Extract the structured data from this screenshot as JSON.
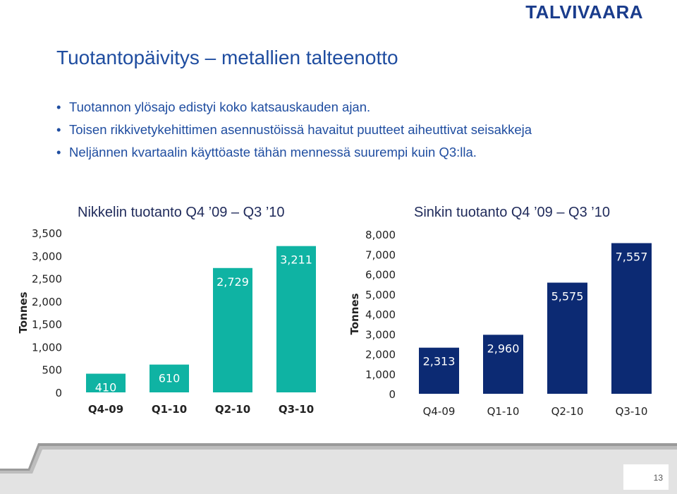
{
  "header": {
    "logo_text": "TALVIVAARA"
  },
  "slide": {
    "title": "Tuotantopäivitys – metallien talteenotto",
    "bullets": [
      "Tuotannon ylösajo edistyi koko katsauskauden ajan.",
      "Toisen rikkivetykehittimen asennustöissä havaitut puutteet aiheuttivat seisakkeja",
      "Neljännen kvartaalin käyttöaste tähän mennessä suurempi kuin Q3:lla."
    ],
    "page_number": "13"
  },
  "colors": {
    "nickel": "#0fb3a3",
    "zinc": "#0c2a73",
    "title": "#1f4da0",
    "footer_band": "#9a9a9a"
  },
  "chart_data": [
    {
      "type": "bar",
      "title": "Nikkelin tuotanto Q4 ’09 – Q3 ’10",
      "categories": [
        "Q4-09",
        "Q1-10",
        "Q2-10",
        "Q3-10"
      ],
      "values": [
        410,
        610,
        2729,
        3211
      ],
      "value_labels": [
        "410",
        "610",
        "2,729",
        "3,211"
      ],
      "ylabel": "Tonnes",
      "ylim": [
        0,
        3500
      ],
      "yticks": [
        "0",
        "500",
        "1,000",
        "1,500",
        "2,000",
        "2,500",
        "3,000",
        "3,500"
      ],
      "color": "#0fb3a3",
      "grid": false
    },
    {
      "type": "bar",
      "title": "Sinkin tuotanto Q4 ’09 – Q3 ’10",
      "categories": [
        "Q4-09",
        "Q1-10",
        "Q2-10",
        "Q3-10"
      ],
      "values": [
        2313,
        2960,
        5575,
        7557
      ],
      "value_labels": [
        "2,313",
        "2,960",
        "5,575",
        "7,557"
      ],
      "ylabel": "Tonnes",
      "ylim": [
        0,
        8000
      ],
      "yticks": [
        "0",
        "1,000",
        "2,000",
        "3,000",
        "4,000",
        "5,000",
        "6,000",
        "7,000",
        "8,000"
      ],
      "color": "#0c2a73",
      "grid": false
    }
  ]
}
